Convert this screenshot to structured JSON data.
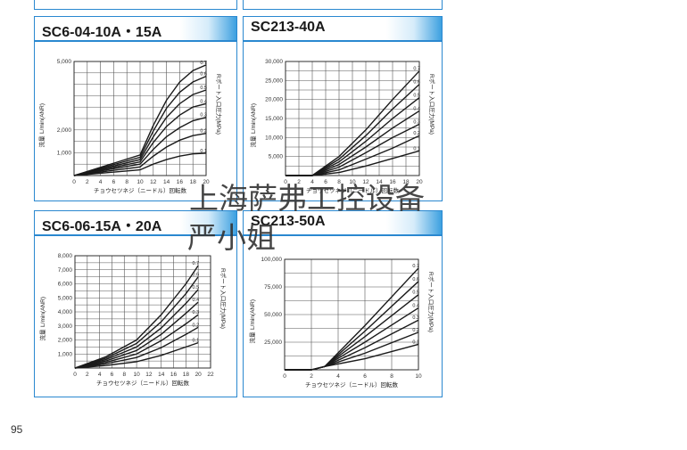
{
  "page_number": "95",
  "watermark": {
    "line1": "上海萨弗工控设备",
    "line2": "严小姐"
  },
  "colors": {
    "frame": "#2a88d0",
    "header_accent": "#3ca0e0",
    "curve": "#1a1a1a",
    "grid": "#555555"
  },
  "chart_data": [
    {
      "id": "c1",
      "type": "line",
      "title": "SC6-04-10A・15A",
      "xlabel": "チョウセツネジ（ニードル）回転数",
      "ylabel_main": "流量",
      "ylabel_unit": "L/min(ANR)",
      "right_label": "Rポート入口圧力(MPa)",
      "xlim": [
        0,
        20
      ],
      "ylim": [
        0,
        5000
      ],
      "xticks": [
        "0",
        "2",
        "4",
        "6",
        "8",
        "10",
        "12",
        "14",
        "16",
        "18",
        "20"
      ],
      "yticks": [
        {
          "v": 1000,
          "t": "1,000"
        },
        {
          "v": 2000,
          "t": "2,000"
        },
        {
          "v": 3000,
          "t": ""
        },
        {
          "v": 4000,
          "t": ""
        },
        {
          "v": 5000,
          "t": "5,000"
        }
      ],
      "series": [
        {
          "name": "0.7",
          "points": [
            [
              0,
              0
            ],
            [
              10,
              900
            ],
            [
              12,
              2200
            ],
            [
              14,
              3300
            ],
            [
              16,
              4100
            ],
            [
              18,
              4600
            ],
            [
              20,
              4850
            ]
          ]
        },
        {
          "name": "0.6",
          "points": [
            [
              0,
              0
            ],
            [
              10,
              800
            ],
            [
              12,
              1950
            ],
            [
              14,
              2950
            ],
            [
              16,
              3650
            ],
            [
              18,
              4100
            ],
            [
              20,
              4350
            ]
          ]
        },
        {
          "name": "0.5",
          "points": [
            [
              0,
              0
            ],
            [
              10,
              700
            ],
            [
              12,
              1700
            ],
            [
              14,
              2550
            ],
            [
              16,
              3150
            ],
            [
              18,
              3550
            ],
            [
              20,
              3750
            ]
          ]
        },
        {
          "name": "0.4",
          "points": [
            [
              0,
              0
            ],
            [
              10,
              600
            ],
            [
              12,
              1450
            ],
            [
              14,
              2150
            ],
            [
              16,
              2650
            ],
            [
              18,
              3000
            ],
            [
              20,
              3150
            ]
          ]
        },
        {
          "name": "0.3",
          "points": [
            [
              0,
              0
            ],
            [
              10,
              500
            ],
            [
              12,
              1150
            ],
            [
              14,
              1700
            ],
            [
              16,
              2100
            ],
            [
              18,
              2400
            ],
            [
              20,
              2550
            ]
          ]
        },
        {
          "name": "0.2",
          "points": [
            [
              0,
              0
            ],
            [
              10,
              380
            ],
            [
              12,
              850
            ],
            [
              14,
              1250
            ],
            [
              16,
              1550
            ],
            [
              18,
              1750
            ],
            [
              20,
              1850
            ]
          ]
        },
        {
          "name": "0.1",
          "points": [
            [
              0,
              0
            ],
            [
              10,
              250
            ],
            [
              12,
              500
            ],
            [
              14,
              700
            ],
            [
              16,
              850
            ],
            [
              18,
              950
            ],
            [
              20,
              980
            ]
          ]
        }
      ]
    },
    {
      "id": "c2",
      "type": "line",
      "title": "SC213-40A",
      "xlabel": "チョウセツネジ（ニードル）回転数",
      "ylabel_main": "流量",
      "ylabel_unit": "L/min(ANR)",
      "right_label": "Rポート入口圧力(MPa)",
      "xlim": [
        0,
        20
      ],
      "ylim": [
        0,
        30000
      ],
      "xticks": [
        "0",
        "2",
        "4",
        "6",
        "8",
        "10",
        "12",
        "14",
        "16",
        "18",
        "20"
      ],
      "yticks": [
        {
          "v": 5000,
          "t": "5,000"
        },
        {
          "v": 10000,
          "t": "10,000"
        },
        {
          "v": 15000,
          "t": "15,000"
        },
        {
          "v": 20000,
          "t": "20,000"
        },
        {
          "v": 25000,
          "t": "25,000"
        },
        {
          "v": 30000,
          "t": "30,000"
        }
      ],
      "series": [
        {
          "name": "0.7",
          "points": [
            [
              0,
              0
            ],
            [
              4,
              0
            ],
            [
              8,
              5000
            ],
            [
              12,
              12000
            ],
            [
              16,
              20000
            ],
            [
              20,
              27500
            ]
          ]
        },
        {
          "name": "0.6",
          "points": [
            [
              0,
              0
            ],
            [
              4,
              0
            ],
            [
              8,
              4300
            ],
            [
              12,
              10500
            ],
            [
              16,
              17500
            ],
            [
              20,
              24000
            ]
          ]
        },
        {
          "name": "0.5",
          "points": [
            [
              0,
              0
            ],
            [
              4,
              0
            ],
            [
              8,
              3600
            ],
            [
              12,
              9000
            ],
            [
              16,
              15000
            ],
            [
              20,
              20500
            ]
          ]
        },
        {
          "name": "0.4",
          "points": [
            [
              0,
              0
            ],
            [
              4,
              0
            ],
            [
              8,
              2900
            ],
            [
              12,
              7500
            ],
            [
              16,
              12500
            ],
            [
              20,
              17000
            ]
          ]
        },
        {
          "name": "0.3",
          "points": [
            [
              0,
              0
            ],
            [
              4,
              0
            ],
            [
              8,
              2200
            ],
            [
              12,
              6000
            ],
            [
              16,
              10000
            ],
            [
              20,
              13500
            ]
          ]
        },
        {
          "name": "0.2",
          "points": [
            [
              0,
              0
            ],
            [
              4,
              0
            ],
            [
              8,
              1500
            ],
            [
              12,
              4300
            ],
            [
              16,
              7200
            ],
            [
              20,
              10500
            ]
          ]
        },
        {
          "name": "0.1",
          "points": [
            [
              0,
              0
            ],
            [
              4,
              0
            ],
            [
              8,
              800
            ],
            [
              12,
              2500
            ],
            [
              16,
              4500
            ],
            [
              20,
              6500
            ]
          ]
        }
      ]
    },
    {
      "id": "c3",
      "type": "line",
      "title": "SC6-06-15A・20A",
      "xlabel": "チョウセツネジ（ニードル）回転数",
      "ylabel_main": "流量",
      "ylabel_unit": "L/min(ANR)",
      "right_label": "Rポート入口圧力(MPa)",
      "xlim": [
        0,
        22
      ],
      "ylim": [
        0,
        8000
      ],
      "xticks": [
        "0",
        "2",
        "4",
        "6",
        "8",
        "10",
        "12",
        "14",
        "16",
        "18",
        "20",
        "22"
      ],
      "yticks": [
        {
          "v": 1000,
          "t": "1,000"
        },
        {
          "v": 2000,
          "t": "2,000"
        },
        {
          "v": 3000,
          "t": "3,000"
        },
        {
          "v": 4000,
          "t": "4,000"
        },
        {
          "v": 5000,
          "t": "5,000"
        },
        {
          "v": 6000,
          "t": "6,000"
        },
        {
          "v": 7000,
          "t": "7,000"
        },
        {
          "v": 8000,
          "t": "8,000"
        }
      ],
      "series": [
        {
          "name": "0.7",
          "points": [
            [
              0,
              0
            ],
            [
              5,
              800
            ],
            [
              10,
              2000
            ],
            [
              14,
              3800
            ],
            [
              18,
              6000
            ],
            [
              20,
              7300
            ]
          ]
        },
        {
          "name": "0.6",
          "points": [
            [
              0,
              0
            ],
            [
              5,
              700
            ],
            [
              10,
              1750
            ],
            [
              14,
              3300
            ],
            [
              18,
              5300
            ],
            [
              20,
              6500
            ]
          ]
        },
        {
          "name": "0.5",
          "points": [
            [
              0,
              0
            ],
            [
              5,
              600
            ],
            [
              10,
              1500
            ],
            [
              14,
              2850
            ],
            [
              18,
              4600
            ],
            [
              20,
              5600
            ]
          ]
        },
        {
          "name": "0.4",
          "points": [
            [
              0,
              0
            ],
            [
              5,
              500
            ],
            [
              10,
              1250
            ],
            [
              14,
              2400
            ],
            [
              18,
              3900
            ],
            [
              20,
              4700
            ]
          ]
        },
        {
          "name": "0.3",
          "points": [
            [
              0,
              0
            ],
            [
              5,
              400
            ],
            [
              10,
              1000
            ],
            [
              14,
              1950
            ],
            [
              18,
              3150
            ],
            [
              20,
              3800
            ]
          ]
        },
        {
          "name": "0.2",
          "points": [
            [
              0,
              0
            ],
            [
              5,
              300
            ],
            [
              10,
              750
            ],
            [
              14,
              1450
            ],
            [
              18,
              2400
            ],
            [
              20,
              2900
            ]
          ]
        },
        {
          "name": "0.1",
          "points": [
            [
              0,
              0
            ],
            [
              5,
              180
            ],
            [
              10,
              450
            ],
            [
              14,
              900
            ],
            [
              18,
              1500
            ],
            [
              20,
              1800
            ]
          ]
        }
      ]
    },
    {
      "id": "c4",
      "type": "line",
      "title": "SC213-50A",
      "xlabel": "チョウセツネジ（ニードル）回転数",
      "ylabel_main": "流量",
      "ylabel_unit": "L/min(ANR)",
      "right_label": "Rポート入口圧力(MPa)",
      "xlim": [
        0,
        10
      ],
      "ylim": [
        0,
        100000
      ],
      "xticks": [
        "0",
        "2",
        "4",
        "6",
        "8",
        "10"
      ],
      "yticks": [
        {
          "v": 25000,
          "t": "25,000"
        },
        {
          "v": 50000,
          "t": "50,000"
        },
        {
          "v": 75000,
          "t": "75,000"
        },
        {
          "v": 100000,
          "t": "100,000"
        }
      ],
      "series": [
        {
          "name": "0.7",
          "points": [
            [
              0,
              0
            ],
            [
              2,
              0
            ],
            [
              3,
              3000
            ],
            [
              6,
              40000
            ],
            [
              10,
              92000
            ]
          ]
        },
        {
          "name": "0.6",
          "points": [
            [
              0,
              0
            ],
            [
              2,
              0
            ],
            [
              3,
              3000
            ],
            [
              6,
              35000
            ],
            [
              10,
              80000
            ]
          ]
        },
        {
          "name": "0.5",
          "points": [
            [
              0,
              0
            ],
            [
              2,
              0
            ],
            [
              3,
              3000
            ],
            [
              6,
              30000
            ],
            [
              10,
              68000
            ]
          ]
        },
        {
          "name": "0.4",
          "points": [
            [
              0,
              0
            ],
            [
              2,
              0
            ],
            [
              3,
              3000
            ],
            [
              6,
              25000
            ],
            [
              10,
              56000
            ]
          ]
        },
        {
          "name": "0.3",
          "points": [
            [
              0,
              0
            ],
            [
              2,
              0
            ],
            [
              3,
              3000
            ],
            [
              6,
              20000
            ],
            [
              10,
              45000
            ]
          ]
        },
        {
          "name": "0.2",
          "points": [
            [
              0,
              0
            ],
            [
              2,
              0
            ],
            [
              3,
              3000
            ],
            [
              6,
              15000
            ],
            [
              10,
              34000
            ]
          ]
        },
        {
          "name": "0.1",
          "points": [
            [
              0,
              0
            ],
            [
              2,
              0
            ],
            [
              3,
              3000
            ],
            [
              6,
              10000
            ],
            [
              10,
              23000
            ]
          ]
        }
      ]
    }
  ]
}
